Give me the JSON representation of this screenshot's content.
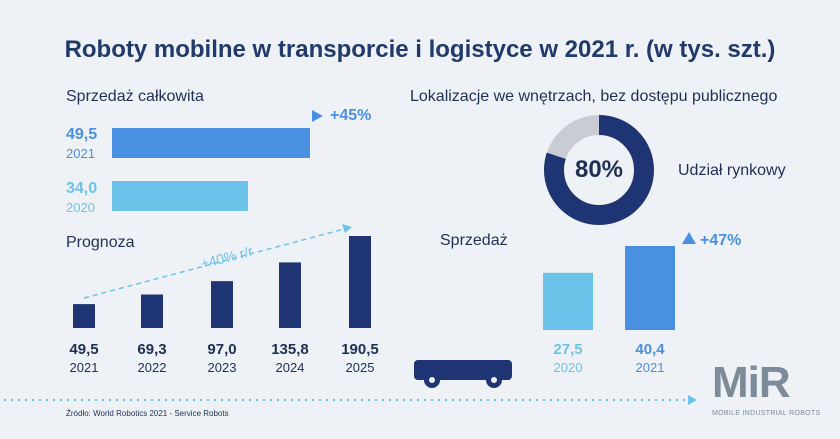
{
  "title": "Roboty mobilne w transporcie i logistyce w 2021 r. (w tys. szt.)",
  "total_sales": {
    "heading": "Sprzedaż całkowita",
    "growth": "+45%",
    "items": [
      {
        "value": "49,5",
        "year": "2021",
        "num": 49.5
      },
      {
        "value": "34,0",
        "year": "2020",
        "num": 34.0
      }
    ]
  },
  "forecast": {
    "heading": "Prognoza",
    "growth": "+40% r/r"
  },
  "indoor": {
    "heading": "Lokalizacje we wnętrzach, bez dostępu publicznego",
    "share_label": "Udział rynkowy",
    "share_value": "80%",
    "share_num": 80,
    "sales_heading": "Sprzedaż",
    "growth": "+47%"
  },
  "source": "Źródło: World Robotics 2021 - Service Robots",
  "logo": {
    "text": "MiR",
    "subtitle": "MOBILE INDUSTRIAL ROBOTS"
  },
  "colors": {
    "dark": "#1f3472",
    "blue": "#4a90e2",
    "light": "#6cc3ea",
    "grey": "#c9ccd2"
  },
  "chart_data": [
    {
      "type": "bar",
      "title": "Sprzedaż całkowita",
      "orientation": "horizontal",
      "categories": [
        "2021",
        "2020"
      ],
      "values": [
        49.5,
        34.0
      ]
    },
    {
      "type": "bar",
      "title": "Prognoza",
      "categories": [
        "2021",
        "2022",
        "2023",
        "2024",
        "2025"
      ],
      "values": [
        49.5,
        69.3,
        97.0,
        135.8,
        190.5
      ],
      "labels": [
        "49,5",
        "69,3",
        "97,0",
        "135,8",
        "190,5"
      ]
    },
    {
      "type": "pie",
      "title": "Udział rynkowy",
      "values": [
        80,
        20
      ]
    },
    {
      "type": "bar",
      "title": "Sprzedaż",
      "categories": [
        "2020",
        "2021"
      ],
      "values": [
        27.5,
        40.4
      ],
      "labels": [
        "27,5",
        "40,4"
      ]
    }
  ]
}
